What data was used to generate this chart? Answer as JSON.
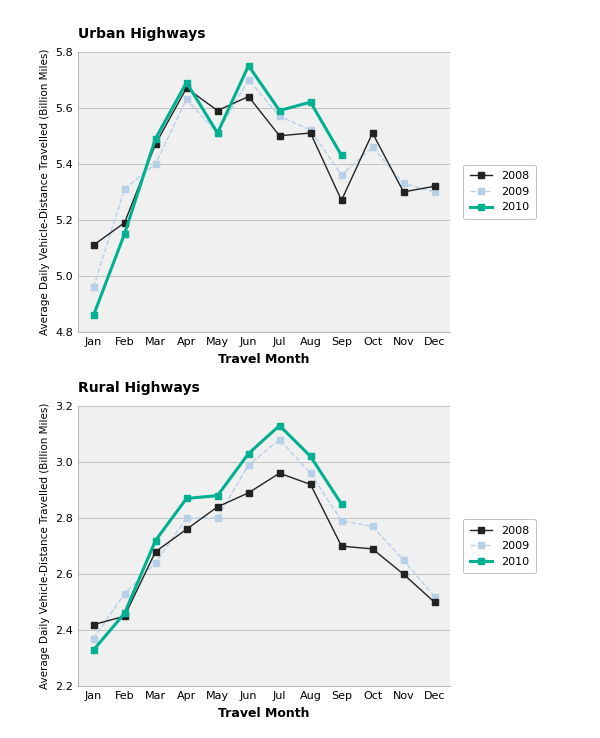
{
  "months": [
    "Jan",
    "Feb",
    "Mar",
    "Apr",
    "May",
    "Jun",
    "Jul",
    "Aug",
    "Sep",
    "Oct",
    "Nov",
    "Dec"
  ],
  "urban": {
    "y2008": [
      5.11,
      5.19,
      5.47,
      5.67,
      5.59,
      5.64,
      5.5,
      5.51,
      5.27,
      5.51,
      5.3,
      5.32
    ],
    "y2009": [
      4.96,
      5.31,
      5.4,
      5.63,
      5.51,
      5.7,
      5.57,
      5.52,
      5.36,
      5.46,
      5.33,
      5.3
    ],
    "y2010": [
      4.86,
      5.15,
      5.49,
      5.69,
      5.51,
      5.75,
      5.59,
      5.62,
      5.43,
      null,
      null,
      null
    ]
  },
  "rural": {
    "y2008": [
      2.42,
      2.45,
      2.68,
      2.76,
      2.84,
      2.89,
      2.96,
      2.92,
      2.7,
      2.69,
      2.6,
      2.5
    ],
    "y2009": [
      2.37,
      2.53,
      2.64,
      2.8,
      2.8,
      2.99,
      3.08,
      2.96,
      2.79,
      2.77,
      2.65,
      2.52
    ],
    "y2010": [
      2.33,
      2.46,
      2.72,
      2.87,
      2.88,
      3.03,
      3.13,
      3.02,
      2.85,
      null,
      null,
      null
    ]
  },
  "urban_ylim": [
    4.8,
    5.8
  ],
  "urban_yticks": [
    4.8,
    5.0,
    5.2,
    5.4,
    5.6,
    5.8
  ],
  "rural_ylim": [
    2.2,
    3.2
  ],
  "rural_yticks": [
    2.2,
    2.4,
    2.6,
    2.8,
    3.0,
    3.2
  ],
  "color_2008": "#222222",
  "color_2009": "#b8cfe8",
  "color_2010": "#00b090",
  "xlabel": "Travel Month",
  "ylabel": "Average Daily Vehicle-Distance Travelled (Billion Miles)",
  "title_urban": "Urban Highways",
  "title_rural": "Rural Highways",
  "legend_labels": [
    "2008",
    "2009",
    "2010"
  ],
  "bg_color": "#f0f0f0"
}
